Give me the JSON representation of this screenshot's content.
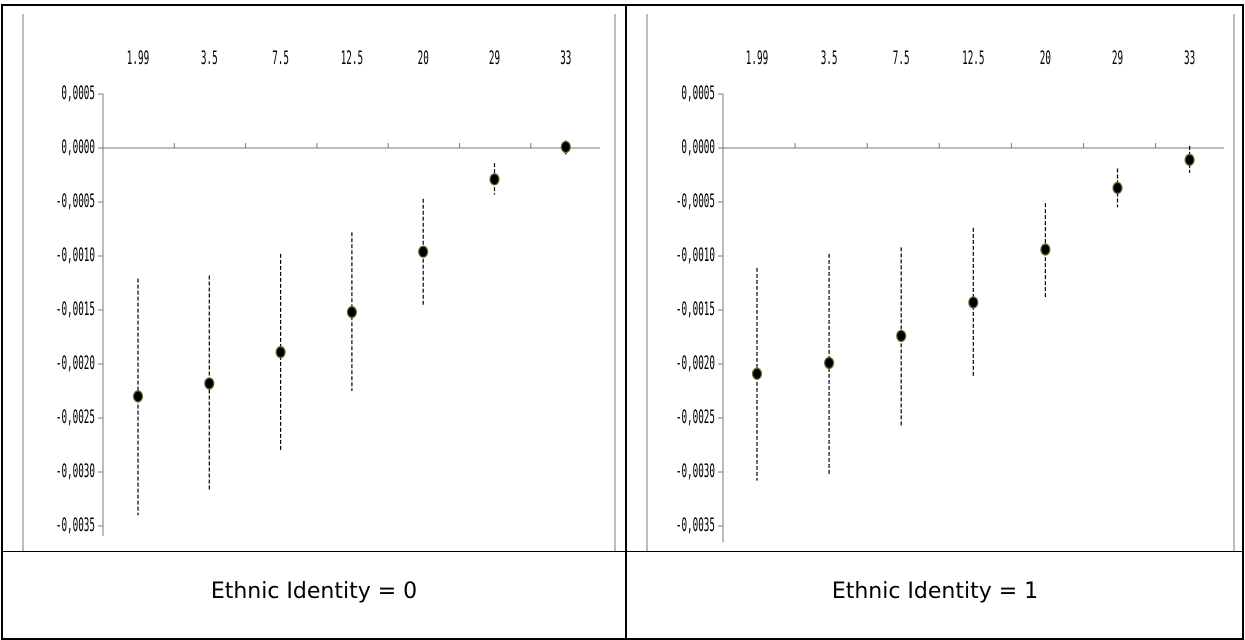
{
  "chart_data": [
    {
      "type": "scatter",
      "title": "",
      "xlabel": "",
      "ylabel": "",
      "categories": [
        "1.99",
        "3.5",
        "7.5",
        "12.5",
        "20",
        "29",
        "33"
      ],
      "values": [
        -0.0023,
        -0.00218,
        -0.00189,
        -0.00152,
        -0.00096,
        -0.00029,
        1e-05
      ],
      "error_low": [
        -0.0034,
        -0.00318,
        -0.0028,
        -0.00225,
        -0.00146,
        -0.00043,
        -6e-05
      ],
      "error_high": [
        -0.00121,
        -0.00118,
        -0.00098,
        -0.00078,
        -0.00047,
        -0.00014,
        7e-05
      ],
      "y_ticks": [
        "0,0005",
        "0,0000",
        "-0,0005",
        "-0,0010",
        "-0,0015",
        "-0,0020",
        "-0,0025",
        "-0,0030",
        "-0,0035"
      ],
      "ylim": [
        -0.0035,
        0.0005
      ],
      "grid": false,
      "marker_color": "#000000",
      "marker_edge_color": "#6b6b2a",
      "caption": "Ethnic Identity = 0"
    },
    {
      "type": "scatter",
      "title": "",
      "xlabel": "",
      "ylabel": "",
      "categories": [
        "1.99",
        "3.5",
        "7.5",
        "12.5",
        "20",
        "29",
        "33"
      ],
      "values": [
        -0.00209,
        -0.00199,
        -0.00174,
        -0.00143,
        -0.00094,
        -0.00037,
        -0.00011
      ],
      "error_low": [
        -0.00308,
        -0.00302,
        -0.00257,
        -0.00212,
        -0.00138,
        -0.00055,
        -0.00023
      ],
      "error_high": [
        -0.00111,
        -0.00098,
        -0.00092,
        -0.00074,
        -0.00051,
        -0.00019,
        2e-05
      ],
      "y_ticks": [
        "0,0005",
        "0,0000",
        "-0,0005",
        "-0,0010",
        "-0,0015",
        "-0,0020",
        "-0,0025",
        "-0,0030",
        "-0,0035"
      ],
      "ylim": [
        -0.0035,
        0.0005
      ],
      "grid": false,
      "marker_color": "#000000",
      "marker_edge_color": "#6b6b2a",
      "caption": "Ethnic Identity = 1"
    }
  ]
}
